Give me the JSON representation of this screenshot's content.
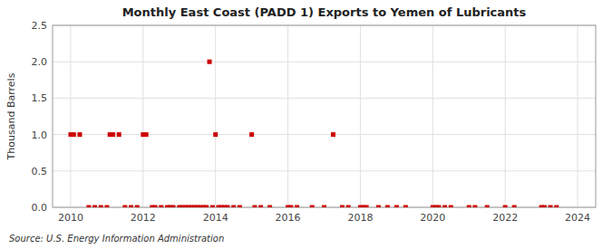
{
  "chart_data": {
    "type": "scatter",
    "title": "Monthly East Coast (PADD 1) Exports to Yemen of Lubricants",
    "y_label": "Thousand Barrels",
    "annotation": "Source: U.S. Energy Information Administration",
    "color": "#cc0000",
    "marker": "square",
    "grid": true,
    "xlim": [
      2009.5,
      2024.5
    ],
    "ylim": [
      0.0,
      2.5
    ],
    "xticks": [
      2010,
      2012,
      2014,
      2016,
      2018,
      2020,
      2022,
      2024
    ],
    "yticks": [
      {
        "value": 0.0,
        "label": "0.0"
      },
      0.5,
      {
        "value": 1.0,
        "label": "1.0"
      },
      1.5,
      {
        "value": 2.0,
        "label": "2.0"
      },
      2.5
    ],
    "x": [
      2010.0,
      2010.083,
      2010.25,
      2010.5,
      2010.667,
      2010.833,
      2011.0,
      2011.083,
      2011.167,
      2011.333,
      2011.5,
      2011.667,
      2011.833,
      2012.0,
      2012.083,
      2012.25,
      2012.333,
      2012.5,
      2012.667,
      2012.75,
      2012.833,
      2013.0,
      2013.083,
      2013.167,
      2013.25,
      2013.333,
      2013.417,
      2013.5,
      2013.583,
      2013.667,
      2013.75,
      2013.833,
      2013.917,
      2014.0,
      2014.083,
      2014.167,
      2014.25,
      2014.333,
      2014.5,
      2014.667,
      2015.0,
      2015.083,
      2015.25,
      2015.5,
      2016.0,
      2016.083,
      2016.25,
      2016.667,
      2017.0,
      2017.25,
      2017.5,
      2017.667,
      2018.0,
      2018.083,
      2018.167,
      2018.5,
      2018.75,
      2019.0,
      2019.25,
      2020.0,
      2020.083,
      2020.167,
      2020.333,
      2020.5,
      2021.0,
      2021.167,
      2021.5,
      2022.0,
      2022.25,
      2023.0,
      2023.083,
      2023.25,
      2023.417
    ],
    "values": [
      1.0,
      1.0,
      1.0,
      0.0,
      0.0,
      0.0,
      0.0,
      1.0,
      1.0,
      1.0,
      0.0,
      0.0,
      0.0,
      1.0,
      1.0,
      0.0,
      0.0,
      0.0,
      0.0,
      0.0,
      0.0,
      0.0,
      0.0,
      0.0,
      0.0,
      0.0,
      0.0,
      0.0,
      0.0,
      0.0,
      0.0,
      2.0,
      0.0,
      1.0,
      0.0,
      0.0,
      0.0,
      0.0,
      0.0,
      0.0,
      1.0,
      0.0,
      0.0,
      0.0,
      0.0,
      0.0,
      0.0,
      0.0,
      0.0,
      1.0,
      0.0,
      0.0,
      0.0,
      0.0,
      0.0,
      0.0,
      0.0,
      0.0,
      0.0,
      0.0,
      0.0,
      0.0,
      0.0,
      0.0,
      0.0,
      0.0,
      0.0,
      0.0,
      0.0,
      0.0,
      0.0,
      0.0,
      0.0
    ]
  }
}
